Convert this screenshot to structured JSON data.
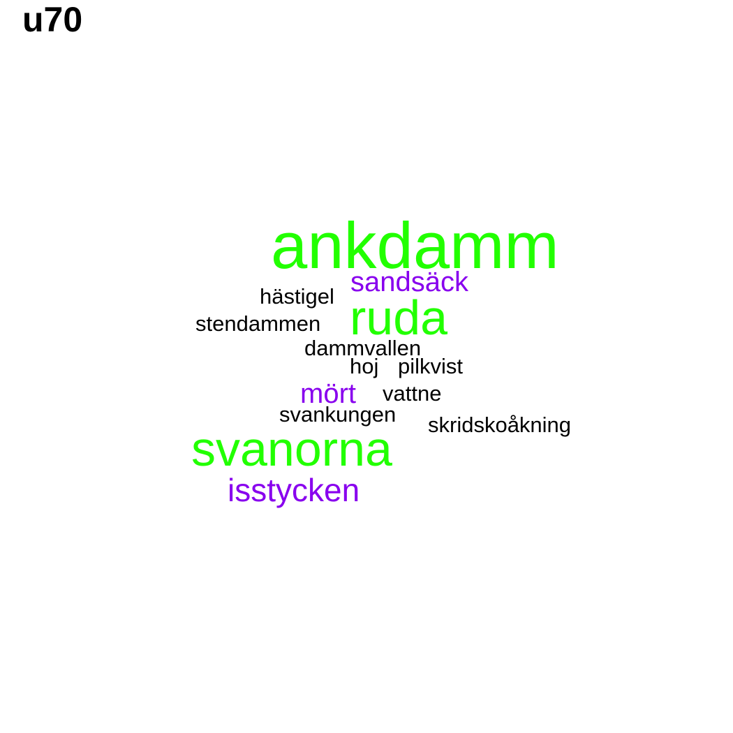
{
  "title": "u70",
  "colors": {
    "high": "#22ff00",
    "mid": "#8800ee",
    "low": "#000000"
  },
  "words": [
    {
      "text": "ankdamm",
      "tier": "high"
    },
    {
      "text": "sandsäck",
      "tier": "mid"
    },
    {
      "text": "hästigel",
      "tier": "low"
    },
    {
      "text": "ruda",
      "tier": "high"
    },
    {
      "text": "stendammen",
      "tier": "low"
    },
    {
      "text": "dammvallen",
      "tier": "low"
    },
    {
      "text": "hoj",
      "tier": "low"
    },
    {
      "text": "pilkvist",
      "tier": "low"
    },
    {
      "text": "mört",
      "tier": "mid"
    },
    {
      "text": "vattne",
      "tier": "low"
    },
    {
      "text": "svankungen",
      "tier": "low"
    },
    {
      "text": "skridskoåkning",
      "tier": "low"
    },
    {
      "text": "svanorna",
      "tier": "high"
    },
    {
      "text": "isstycken",
      "tier": "mid"
    }
  ]
}
